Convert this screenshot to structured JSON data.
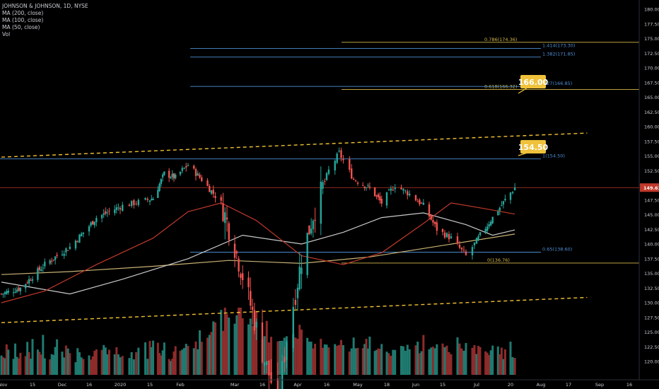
{
  "legend": {
    "symbol": "JOHNSON & JOHNSON, 1D, NYSE",
    "ma200": "MA (200, close)",
    "ma100": "MA (100, close)",
    "ma50": "MA (50, close)",
    "vol": "Vol"
  },
  "colors": {
    "background": "#000000",
    "up": "#26a69a",
    "down": "#ef5350",
    "vol_up": "#1f7a70",
    "vol_down": "#8e2b2b",
    "fib_gold": "#d4b84a",
    "fib_blue": "#4e8fd6",
    "channel": "#f1c232",
    "ma200": "#c9b274",
    "ma100": "#c9c9c9",
    "ma50": "#c0392b",
    "price_line": "#c0392b",
    "callout": "#f0c23b",
    "axis_text": "#c9ccd3"
  },
  "chart_data": {
    "type": "candlestick",
    "y_axis_ticks": [
      "180.00",
      "177.50",
      "175.00",
      "172.50",
      "170.00",
      "167.50",
      "165.00",
      "162.50",
      "160.00",
      "157.50",
      "155.00",
      "152.50",
      "150.00",
      "147.50",
      "145.00",
      "142.50",
      "140.00",
      "137.50",
      "135.00",
      "132.50",
      "130.00",
      "127.50",
      "125.00",
      "122.50",
      "120.00"
    ],
    "ylim": [
      119.0,
      181.5
    ],
    "x_axis_labels": [
      "Nov",
      "15",
      "Dec",
      "16",
      "2020",
      "15",
      "Feb",
      "Mar",
      "16",
      "Apr",
      "16",
      "May",
      "18",
      "Jun",
      "15",
      "Jul",
      "20",
      "Aug",
      "17",
      "Sep",
      "16"
    ],
    "current_price": {
      "label": "149.61",
      "value": 149.61
    },
    "callouts": [
      {
        "label": "166.00",
        "value": 166.0
      },
      {
        "label": "154.50",
        "value": 154.5
      }
    ],
    "fib_levels": [
      {
        "label": "0.786(174.36)",
        "value": 174.36,
        "color": "gold"
      },
      {
        "label": "1.414(173.30)",
        "value": 173.3,
        "color": "blue"
      },
      {
        "label": "1.382(171.85)",
        "value": 171.85,
        "color": "blue"
      },
      {
        "label": "0.618(166.32)",
        "value": 166.32,
        "color": "gold"
      },
      {
        "label": "1.27(166.85)",
        "value": 166.85,
        "color": "blue"
      },
      {
        "label": "1(154.50)",
        "value": 154.5,
        "color": "blue"
      },
      {
        "label": "0.65(138.60)",
        "value": 138.6,
        "color": "blue"
      },
      {
        "label": "0(136.76)",
        "value": 136.76,
        "color": "gold"
      }
    ],
    "channel_lines": [
      {
        "name": "upper",
        "from": {
          "date": "2019-10-28",
          "price": 154.8
        },
        "to": {
          "date": "2020-08-26",
          "price": 158.9
        }
      },
      {
        "name": "lower",
        "from": {
          "date": "2019-10-28",
          "price": 126.6
        },
        "to": {
          "date": "2020-08-26",
          "price": 130.9
        }
      }
    ],
    "series_close_points": [
      {
        "date": "2019-10-28",
        "close": 131.5
      },
      {
        "date": "2019-11-08",
        "close": 132.5
      },
      {
        "date": "2019-11-22",
        "close": 136.5
      },
      {
        "date": "2019-12-06",
        "close": 139.5
      },
      {
        "date": "2019-12-20",
        "close": 144.5
      },
      {
        "date": "2020-01-03",
        "close": 146.5
      },
      {
        "date": "2020-01-17",
        "close": 147.8
      },
      {
        "date": "2020-01-24",
        "close": 152.0
      },
      {
        "date": "2020-01-31",
        "close": 151.3
      },
      {
        "date": "2020-02-07",
        "close": 153.5
      },
      {
        "date": "2020-02-14",
        "close": 151.0
      },
      {
        "date": "2020-02-24",
        "close": 147.0
      },
      {
        "date": "2020-03-02",
        "close": 139.5
      },
      {
        "date": "2020-03-09",
        "close": 131.0
      },
      {
        "date": "2020-03-16",
        "close": 121.5
      },
      {
        "date": "2020-03-23",
        "close": 113.0
      },
      {
        "date": "2020-03-27",
        "close": 124.0
      },
      {
        "date": "2020-04-03",
        "close": 137.5
      },
      {
        "date": "2020-04-09",
        "close": 145.0
      },
      {
        "date": "2020-04-17",
        "close": 152.5
      },
      {
        "date": "2020-04-22",
        "close": 155.5
      },
      {
        "date": "2020-04-29",
        "close": 151.0
      },
      {
        "date": "2020-05-08",
        "close": 149.5
      },
      {
        "date": "2020-05-15",
        "close": 147.0
      },
      {
        "date": "2020-05-22",
        "close": 150.0
      },
      {
        "date": "2020-05-29",
        "close": 148.5
      },
      {
        "date": "2020-06-05",
        "close": 146.5
      },
      {
        "date": "2020-06-12",
        "close": 142.5
      },
      {
        "date": "2020-06-19",
        "close": 141.0
      },
      {
        "date": "2020-06-26",
        "close": 138.0
      },
      {
        "date": "2020-07-03",
        "close": 141.5
      },
      {
        "date": "2020-07-10",
        "close": 144.5
      },
      {
        "date": "2020-07-17",
        "close": 147.5
      },
      {
        "date": "2020-07-22",
        "close": 149.6
      }
    ],
    "ma50_points": [
      {
        "date": "2019-10-28",
        "value": 130.0
      },
      {
        "date": "2019-11-22",
        "value": 132.0
      },
      {
        "date": "2019-12-20",
        "value": 136.5
      },
      {
        "date": "2020-01-17",
        "value": 141.0
      },
      {
        "date": "2020-02-07",
        "value": 145.5
      },
      {
        "date": "2020-02-24",
        "value": 147.0
      },
      {
        "date": "2020-03-13",
        "value": 144.0
      },
      {
        "date": "2020-04-03",
        "value": 138.0
      },
      {
        "date": "2020-04-24",
        "value": 136.5
      },
      {
        "date": "2020-05-15",
        "value": 138.5
      },
      {
        "date": "2020-06-05",
        "value": 143.5
      },
      {
        "date": "2020-06-19",
        "value": 147.0
      },
      {
        "date": "2020-07-06",
        "value": 146.0
      },
      {
        "date": "2020-07-22",
        "value": 145.1
      }
    ],
    "ma100_points": [
      {
        "date": "2019-10-28",
        "value": 133.5
      },
      {
        "date": "2019-12-06",
        "value": 131.5
      },
      {
        "date": "2020-01-03",
        "value": 134.0
      },
      {
        "date": "2020-02-07",
        "value": 137.5
      },
      {
        "date": "2020-03-06",
        "value": 141.5
      },
      {
        "date": "2020-04-03",
        "value": 140.0
      },
      {
        "date": "2020-04-24",
        "value": 142.0
      },
      {
        "date": "2020-05-15",
        "value": 144.5
      },
      {
        "date": "2020-06-05",
        "value": 145.3
      },
      {
        "date": "2020-06-26",
        "value": 143.3
      },
      {
        "date": "2020-07-10",
        "value": 141.5
      },
      {
        "date": "2020-07-22",
        "value": 142.4
      }
    ],
    "ma200_points": [
      {
        "date": "2019-10-28",
        "value": 134.8
      },
      {
        "date": "2019-12-06",
        "value": 135.3
      },
      {
        "date": "2020-01-17",
        "value": 136.2
      },
      {
        "date": "2020-02-28",
        "value": 137.2
      },
      {
        "date": "2020-04-03",
        "value": 136.7
      },
      {
        "date": "2020-05-08",
        "value": 137.8
      },
      {
        "date": "2020-06-12",
        "value": 139.6
      },
      {
        "date": "2020-07-22",
        "value": 141.7
      }
    ],
    "volume_relative": [
      0.3,
      0.25,
      0.45,
      0.35,
      0.3,
      0.4,
      0.35,
      0.3,
      0.25,
      0.4,
      0.35,
      0.3,
      0.45,
      0.4,
      0.35,
      0.5,
      0.3,
      0.25,
      0.35,
      0.3,
      0.4,
      0.45,
      0.3,
      0.35,
      0.4,
      0.3,
      0.25,
      0.35,
      0.4,
      0.3,
      0.35,
      0.3,
      0.25,
      0.3,
      0.35,
      0.3,
      0.4,
      0.35,
      0.3,
      0.25,
      0.35,
      0.4,
      0.3,
      0.35,
      0.3,
      0.25,
      0.3,
      0.35,
      0.4,
      0.3,
      0.45,
      0.5,
      0.4,
      0.35,
      0.3,
      0.35,
      0.4,
      0.3,
      0.25,
      0.3,
      0.35,
      0.4,
      0.5,
      0.45,
      0.4,
      0.35,
      0.4,
      0.5,
      0.55,
      0.6,
      0.55,
      0.5,
      0.6,
      0.7,
      0.85,
      0.8,
      0.9,
      0.75,
      0.7,
      0.8,
      0.95,
      1.0,
      0.85,
      0.9,
      0.8,
      0.7,
      0.75,
      0.8,
      0.7,
      0.65,
      0.6,
      0.7,
      0.55,
      0.6,
      0.5,
      0.65,
      0.55,
      0.45,
      0.5,
      0.6,
      0.55,
      0.5,
      0.45,
      0.5,
      0.55,
      0.45,
      0.5,
      0.4,
      0.45,
      0.5,
      0.4,
      0.45,
      0.5,
      0.4,
      0.35,
      0.4,
      0.45,
      0.4,
      0.35,
      0.4,
      0.45,
      0.4,
      0.5,
      0.45,
      0.4,
      0.35,
      0.4,
      0.45,
      0.4,
      0.35,
      0.3,
      0.35,
      0.4,
      0.35,
      0.4,
      0.45,
      0.5,
      0.45,
      0.4,
      0.45,
      0.5,
      0.45,
      0.4,
      0.45,
      0.5,
      0.55,
      0.5,
      0.45,
      0.4,
      0.45,
      0.5,
      0.45,
      0.4,
      0.45,
      0.5,
      0.4,
      0.35,
      0.4,
      0.45,
      0.4,
      0.35,
      0.3,
      0.35,
      0.4,
      0.35,
      0.3,
      0.35,
      0.4,
      0.35,
      0.3
    ],
    "grid": false,
    "legend_position": "top-left"
  }
}
